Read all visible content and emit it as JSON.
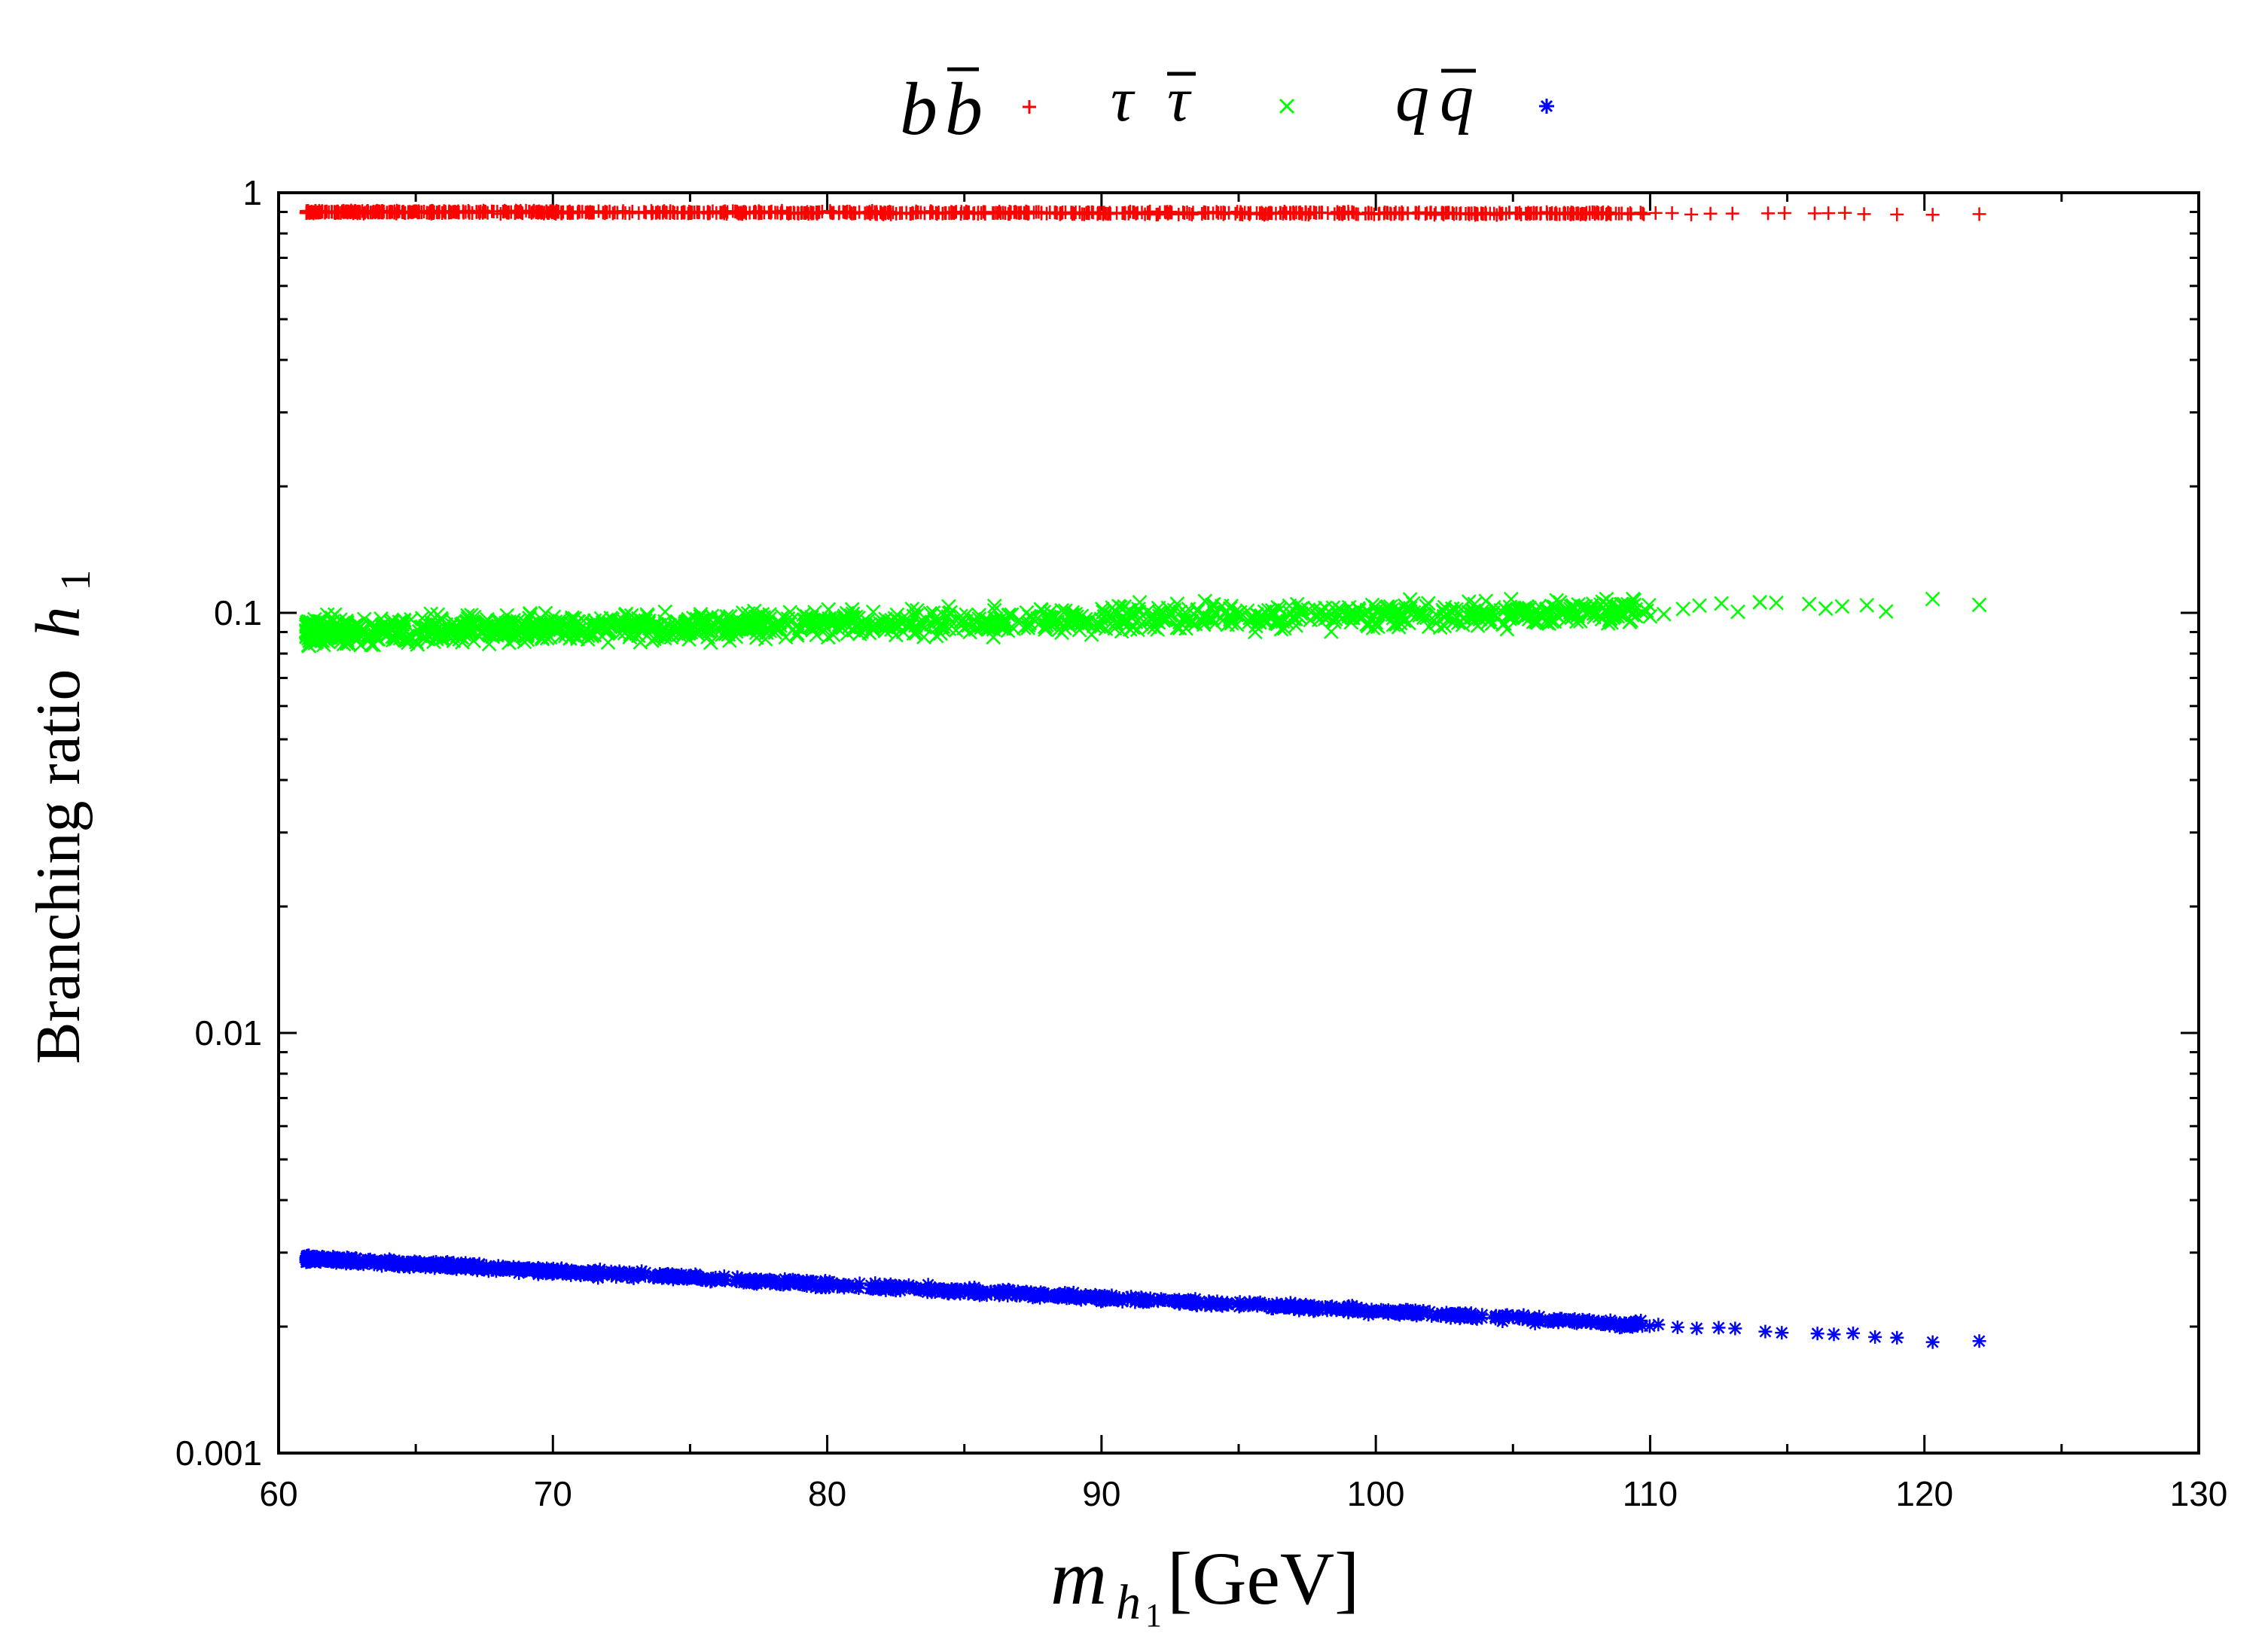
{
  "chart_data": {
    "type": "scatter",
    "title": "",
    "xlabel": {
      "var": "m",
      "sub": "h",
      "subsub": "1",
      "unit": "[GeV]"
    },
    "ylabel": {
      "text": "Branching ratio",
      "var": "h",
      "sub": "1"
    },
    "xlim": [
      60,
      130
    ],
    "ylim": [
      0.001,
      1
    ],
    "yscale": "log",
    "grid": false,
    "legend_position": "top-center",
    "x_tick_labels": [
      "60",
      "70",
      "80",
      "90",
      "100",
      "110",
      "120",
      "130"
    ],
    "y_tick_labels": [
      "0.001",
      "0.01",
      "0.1",
      "1"
    ],
    "series": [
      {
        "name": "bb̄",
        "legend_base": "b",
        "legend_bar": "b",
        "marker": "plus",
        "color": "#ff0000",
        "x_range": [
          61,
          122
        ],
        "y_start": 0.9,
        "y_end": 0.89,
        "spread": 0.005,
        "n": 900,
        "sparse_x": [
          110.2,
          110.8,
          111.5,
          112.2,
          113.0,
          114.3,
          114.9,
          116.0,
          116.5,
          117.1,
          117.8,
          119.0,
          120.3,
          122.0
        ]
      },
      {
        "name": "ττ̄",
        "legend_base": "τ",
        "legend_bar": "τ",
        "marker": "cross",
        "color": "#00ff00",
        "x_range": [
          61,
          122
        ],
        "y_start": 0.09,
        "y_end": 0.104,
        "spread": 0.045,
        "n": 1400,
        "sparse_x": [
          110.0,
          110.5,
          111.2,
          111.8,
          112.6,
          113.2,
          114.0,
          114.6,
          115.8,
          116.4,
          117.0,
          117.9,
          118.6,
          120.3,
          122.0
        ]
      },
      {
        "name": "qq̄",
        "legend_base": "q",
        "legend_bar": "q",
        "marker": "asterisk",
        "color": "#0000ff",
        "x_range": [
          61,
          122
        ],
        "y_start": 0.0029,
        "y_end": 0.00185,
        "spread": 0.012,
        "n": 1200,
        "sparse_x": [
          110.3,
          111.0,
          111.7,
          112.5,
          113.1,
          114.2,
          114.8,
          116.1,
          116.7,
          117.4,
          118.2,
          119.0,
          120.3,
          122.0
        ]
      }
    ]
  }
}
